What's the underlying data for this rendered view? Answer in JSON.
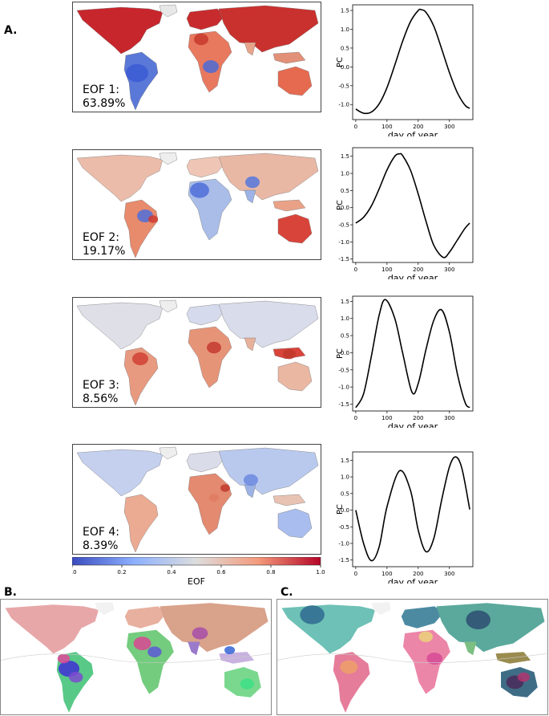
{
  "panels": {
    "a": "A.",
    "b": "B.",
    "c": "C."
  },
  "eof_maps": [
    {
      "line1": "EOF 1:",
      "line2": "63.89%"
    },
    {
      "line1": "EOF 2:",
      "line2": "19.17%"
    },
    {
      "line1": "EOF 3:",
      "line2": "8.56%"
    },
    {
      "line1": "EOF 4:",
      "line2": "8.39%"
    }
  ],
  "colorbar": {
    "label": "EOF",
    "ticks": [
      "0.0",
      "0.2",
      "0.4",
      "0.6",
      "0.8",
      "1.0"
    ],
    "colors": [
      "#3b4cc0",
      "#8db0fe",
      "#dddddd",
      "#f49a7b",
      "#b40426"
    ]
  },
  "chart_data": [
    {
      "type": "line",
      "xlabel": "day of year",
      "ylabel": "PC",
      "xticks": [
        0,
        100,
        200,
        300
      ],
      "yticks": [
        -1.0,
        -0.5,
        0.0,
        0.5,
        1.0,
        1.5
      ],
      "xlim": [
        -10,
        375
      ],
      "ylim": [
        -1.4,
        1.65
      ],
      "series": [
        {
          "x": [
            0,
            25,
            50,
            75,
            100,
            125,
            150,
            175,
            200,
            210,
            225,
            250,
            275,
            300,
            325,
            350,
            365
          ],
          "values": [
            -1.12,
            -1.23,
            -1.2,
            -0.98,
            -0.55,
            0.05,
            0.68,
            1.2,
            1.5,
            1.52,
            1.45,
            1.08,
            0.48,
            -0.15,
            -0.68,
            -1.02,
            -1.1
          ]
        }
      ]
    },
    {
      "type": "line",
      "xlabel": "day of year",
      "ylabel": "PC",
      "xticks": [
        0,
        100,
        200,
        300
      ],
      "yticks": [
        -1.5,
        -1.0,
        -0.5,
        0.0,
        0.5,
        1.0,
        1.5
      ],
      "xlim": [
        -10,
        375
      ],
      "ylim": [
        -1.6,
        1.75
      ],
      "series": [
        {
          "x": [
            0,
            25,
            50,
            75,
            100,
            125,
            140,
            150,
            175,
            200,
            225,
            250,
            280,
            300,
            325,
            350,
            365
          ],
          "values": [
            -0.45,
            -0.28,
            0.05,
            0.55,
            1.1,
            1.5,
            1.57,
            1.52,
            1.1,
            0.4,
            -0.4,
            -1.1,
            -1.45,
            -1.3,
            -0.95,
            -0.6,
            -0.45
          ]
        }
      ]
    },
    {
      "type": "line",
      "xlabel": "day of year",
      "ylabel": "PC",
      "xticks": [
        0,
        100,
        200,
        300
      ],
      "yticks": [
        -1.5,
        -1.0,
        -0.5,
        0.0,
        0.5,
        1.0,
        1.5
      ],
      "xlim": [
        -10,
        375
      ],
      "ylim": [
        -1.7,
        1.65
      ],
      "series": [
        {
          "x": [
            0,
            25,
            50,
            75,
            95,
            125,
            150,
            180,
            200,
            225,
            250,
            275,
            300,
            325,
            350,
            365
          ],
          "values": [
            -1.6,
            -1.2,
            -0.1,
            1.1,
            1.55,
            1.0,
            0.0,
            -1.15,
            -0.9,
            0.1,
            0.95,
            1.25,
            0.6,
            -0.6,
            -1.45,
            -1.6
          ]
        }
      ]
    },
    {
      "type": "line",
      "xlabel": "day of year",
      "ylabel": "PC",
      "xticks": [
        0,
        100,
        200,
        300
      ],
      "yticks": [
        -1.5,
        -1.0,
        -0.5,
        0.0,
        0.5,
        1.0,
        1.5
      ],
      "xlim": [
        -10,
        375
      ],
      "ylim": [
        -1.7,
        1.75
      ],
      "series": [
        {
          "x": [
            0,
            25,
            50,
            75,
            100,
            140,
            175,
            200,
            225,
            250,
            275,
            300,
            320,
            340,
            365
          ],
          "values": [
            0.0,
            -1.0,
            -1.52,
            -1.1,
            0.1,
            1.18,
            0.6,
            -0.6,
            -1.25,
            -0.85,
            0.3,
            1.3,
            1.6,
            1.25,
            0.02
          ]
        }
      ]
    }
  ]
}
